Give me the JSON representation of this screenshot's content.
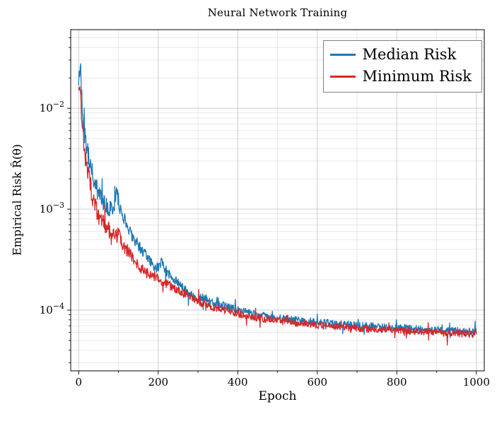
{
  "chart_data": {
    "type": "line",
    "title": "Neural Network Training",
    "xlabel": "Epoch",
    "ylabel": "Empirical Risk R̂(θ)",
    "y_scale": "log",
    "xlim": [
      -20,
      1020
    ],
    "ylim": [
      2.5e-05,
      0.06
    ],
    "x_ticks": [
      0,
      200,
      400,
      600,
      800,
      1000
    ],
    "x_minor_step": 100,
    "y_tick_exponents": [
      -2,
      -3,
      -4
    ],
    "grid": "both",
    "legend_position": "top-right",
    "noise_amplitude_log10": 0.035,
    "series": [
      {
        "name": "Median Risk",
        "color": "#1f77b4",
        "keypoints": [
          [
            0,
            0.015
          ],
          [
            2,
            0.022
          ],
          [
            4,
            0.025
          ],
          [
            7,
            0.015
          ],
          [
            10,
            0.009
          ],
          [
            14,
            0.006
          ],
          [
            18,
            0.0045
          ],
          [
            25,
            0.0032
          ],
          [
            32,
            0.0024
          ],
          [
            40,
            0.0019
          ],
          [
            48,
            0.0015
          ],
          [
            55,
            0.0013
          ],
          [
            62,
            0.00115
          ],
          [
            70,
            0.00108
          ],
          [
            78,
            0.001
          ],
          [
            85,
            0.00102
          ],
          [
            90,
            0.0011
          ],
          [
            95,
            0.00145
          ],
          [
            100,
            0.00125
          ],
          [
            105,
            0.001
          ],
          [
            112,
            0.00085
          ],
          [
            120,
            0.00072
          ],
          [
            130,
            0.00058
          ],
          [
            140,
            0.0005
          ],
          [
            150,
            0.00044
          ],
          [
            160,
            0.00038
          ],
          [
            170,
            0.00034
          ],
          [
            180,
            0.0003
          ],
          [
            190,
            0.00027
          ],
          [
            200,
            0.00026
          ],
          [
            208,
            0.0003
          ],
          [
            215,
            0.00027
          ],
          [
            225,
            0.00023
          ],
          [
            240,
            0.0002
          ],
          [
            255,
            0.00018
          ],
          [
            270,
            0.000155
          ],
          [
            285,
            0.00014
          ],
          [
            300,
            0.00013
          ],
          [
            315,
            0.000135
          ],
          [
            325,
            0.000125
          ],
          [
            340,
            0.000118
          ],
          [
            360,
            0.000112
          ],
          [
            380,
            0.000106
          ],
          [
            400,
            0.0001
          ],
          [
            420,
            9.55e-05
          ],
          [
            440,
            9.2e-05
          ],
          [
            460,
            8.85e-05
          ],
          [
            480,
            8.6e-05
          ],
          [
            500,
            8.38e-05
          ],
          [
            530,
            8.12e-05
          ],
          [
            560,
            7.88e-05
          ],
          [
            590,
            7.68e-05
          ],
          [
            620,
            7.5e-05
          ],
          [
            650,
            7.34e-05
          ],
          [
            680,
            7.2e-05
          ],
          [
            710,
            7.06e-05
          ],
          [
            740,
            6.93e-05
          ],
          [
            770,
            6.8e-05
          ],
          [
            800,
            6.68e-05
          ],
          [
            840,
            6.54e-05
          ],
          [
            880,
            6.41e-05
          ],
          [
            920,
            6.3e-05
          ],
          [
            960,
            6.19e-05
          ],
          [
            1000,
            6.1e-05
          ]
        ]
      },
      {
        "name": "Minimum Risk",
        "color": "#d62728",
        "keypoints": [
          [
            0,
            0.016
          ],
          [
            2,
            0.02
          ],
          [
            4,
            0.018
          ],
          [
            7,
            0.01
          ],
          [
            10,
            0.0065
          ],
          [
            14,
            0.0042
          ],
          [
            18,
            0.003
          ],
          [
            25,
            0.0021
          ],
          [
            32,
            0.0015
          ],
          [
            40,
            0.00115
          ],
          [
            48,
            0.00092
          ],
          [
            55,
            0.0008
          ],
          [
            62,
            0.00072
          ],
          [
            70,
            0.00066
          ],
          [
            78,
            0.00061
          ],
          [
            85,
            0.00058
          ],
          [
            92,
            0.00054
          ],
          [
            100,
            0.00056
          ],
          [
            105,
            0.0005
          ],
          [
            112,
            0.00044
          ],
          [
            120,
            0.0004
          ],
          [
            130,
            0.00035
          ],
          [
            140,
            0.00031
          ],
          [
            150,
            0.00028
          ],
          [
            160,
            0.000255
          ],
          [
            170,
            0.000235
          ],
          [
            180,
            0.00022
          ],
          [
            190,
            0.00021
          ],
          [
            200,
            0.000205
          ],
          [
            215,
            0.00019
          ],
          [
            230,
            0.000175
          ],
          [
            245,
            0.000162
          ],
          [
            260,
            0.00015
          ],
          [
            275,
            0.000138
          ],
          [
            290,
            0.000128
          ],
          [
            305,
            0.00012
          ],
          [
            320,
            0.000113
          ],
          [
            340,
            0.000106
          ],
          [
            360,
            0.000101
          ],
          [
            380,
            9.65e-05
          ],
          [
            400,
            9.25e-05
          ],
          [
            420,
            8.88e-05
          ],
          [
            440,
            8.56e-05
          ],
          [
            460,
            8.28e-05
          ],
          [
            480,
            8.04e-05
          ],
          [
            500,
            7.83e-05
          ],
          [
            530,
            7.56e-05
          ],
          [
            560,
            7.34e-05
          ],
          [
            590,
            7.15e-05
          ],
          [
            620,
            6.99e-05
          ],
          [
            650,
            6.84e-05
          ],
          [
            680,
            6.71e-05
          ],
          [
            710,
            6.59e-05
          ],
          [
            740,
            6.48e-05
          ],
          [
            770,
            6.38e-05
          ],
          [
            800,
            6.28e-05
          ],
          [
            840,
            6.16e-05
          ],
          [
            880,
            6.05e-05
          ],
          [
            920,
            5.95e-05
          ],
          [
            960,
            5.86e-05
          ],
          [
            1000,
            5.72e-05
          ]
        ]
      }
    ]
  }
}
